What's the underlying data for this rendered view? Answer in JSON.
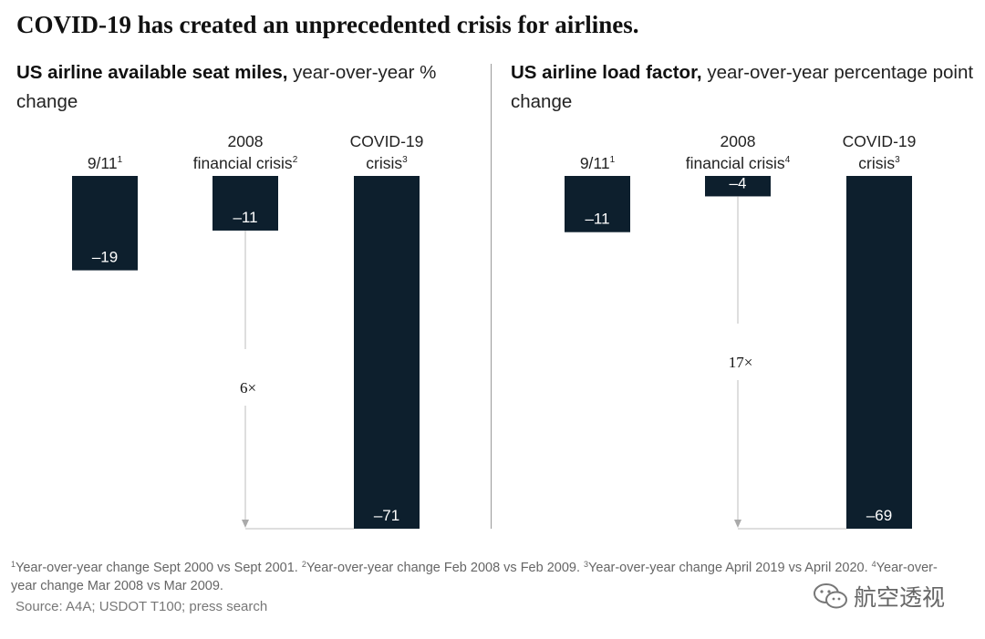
{
  "title": "COVID-19 has created an unprecedented crisis for airlines.",
  "chart_data": [
    {
      "type": "bar",
      "title": "US airline available seat miles,",
      "subtitle": "year-over-year % change",
      "categories": [
        {
          "lines": [
            "9/11"
          ],
          "sup": "1"
        },
        {
          "lines": [
            "2008",
            "financial crisis"
          ],
          "sup": "2"
        },
        {
          "lines": [
            "COVID-19",
            "crisis"
          ],
          "sup": "3"
        }
      ],
      "values": [
        -19,
        -11,
        -71
      ],
      "value_labels": [
        "–19",
        "–11",
        "–71"
      ],
      "ylim": [
        -71,
        0
      ],
      "annotation": "6×",
      "color": "#0d1f2d"
    },
    {
      "type": "bar",
      "title": "US airline load factor,",
      "subtitle": "year-over-year percentage point change",
      "categories": [
        {
          "lines": [
            "9/11"
          ],
          "sup": "1"
        },
        {
          "lines": [
            "2008",
            "financial crisis"
          ],
          "sup": "4"
        },
        {
          "lines": [
            "COVID-19",
            "crisis"
          ],
          "sup": "3"
        }
      ],
      "values": [
        -11,
        -4,
        -69
      ],
      "value_labels": [
        "–11",
        "–4",
        "–69"
      ],
      "ylim": [
        -69,
        0
      ],
      "annotation": "17×",
      "color": "#0d1f2d"
    }
  ],
  "footnotes": [
    {
      "num": "1",
      "text": "Year-over-year change Sept 2000 vs Sept 2001."
    },
    {
      "num": "2",
      "text": "Year-over-year change Feb 2008 vs Feb 2009."
    },
    {
      "num": "3",
      "text": "Year-over-year change April 2019 vs April 2020."
    },
    {
      "num": "4",
      "text": "Year-over-year change Mar 2008 vs Mar 2009."
    }
  ],
  "source": "Source: A4A; USDOT T100; press search",
  "watermark": "航空透视",
  "watermark_icon": "wechat-icon"
}
